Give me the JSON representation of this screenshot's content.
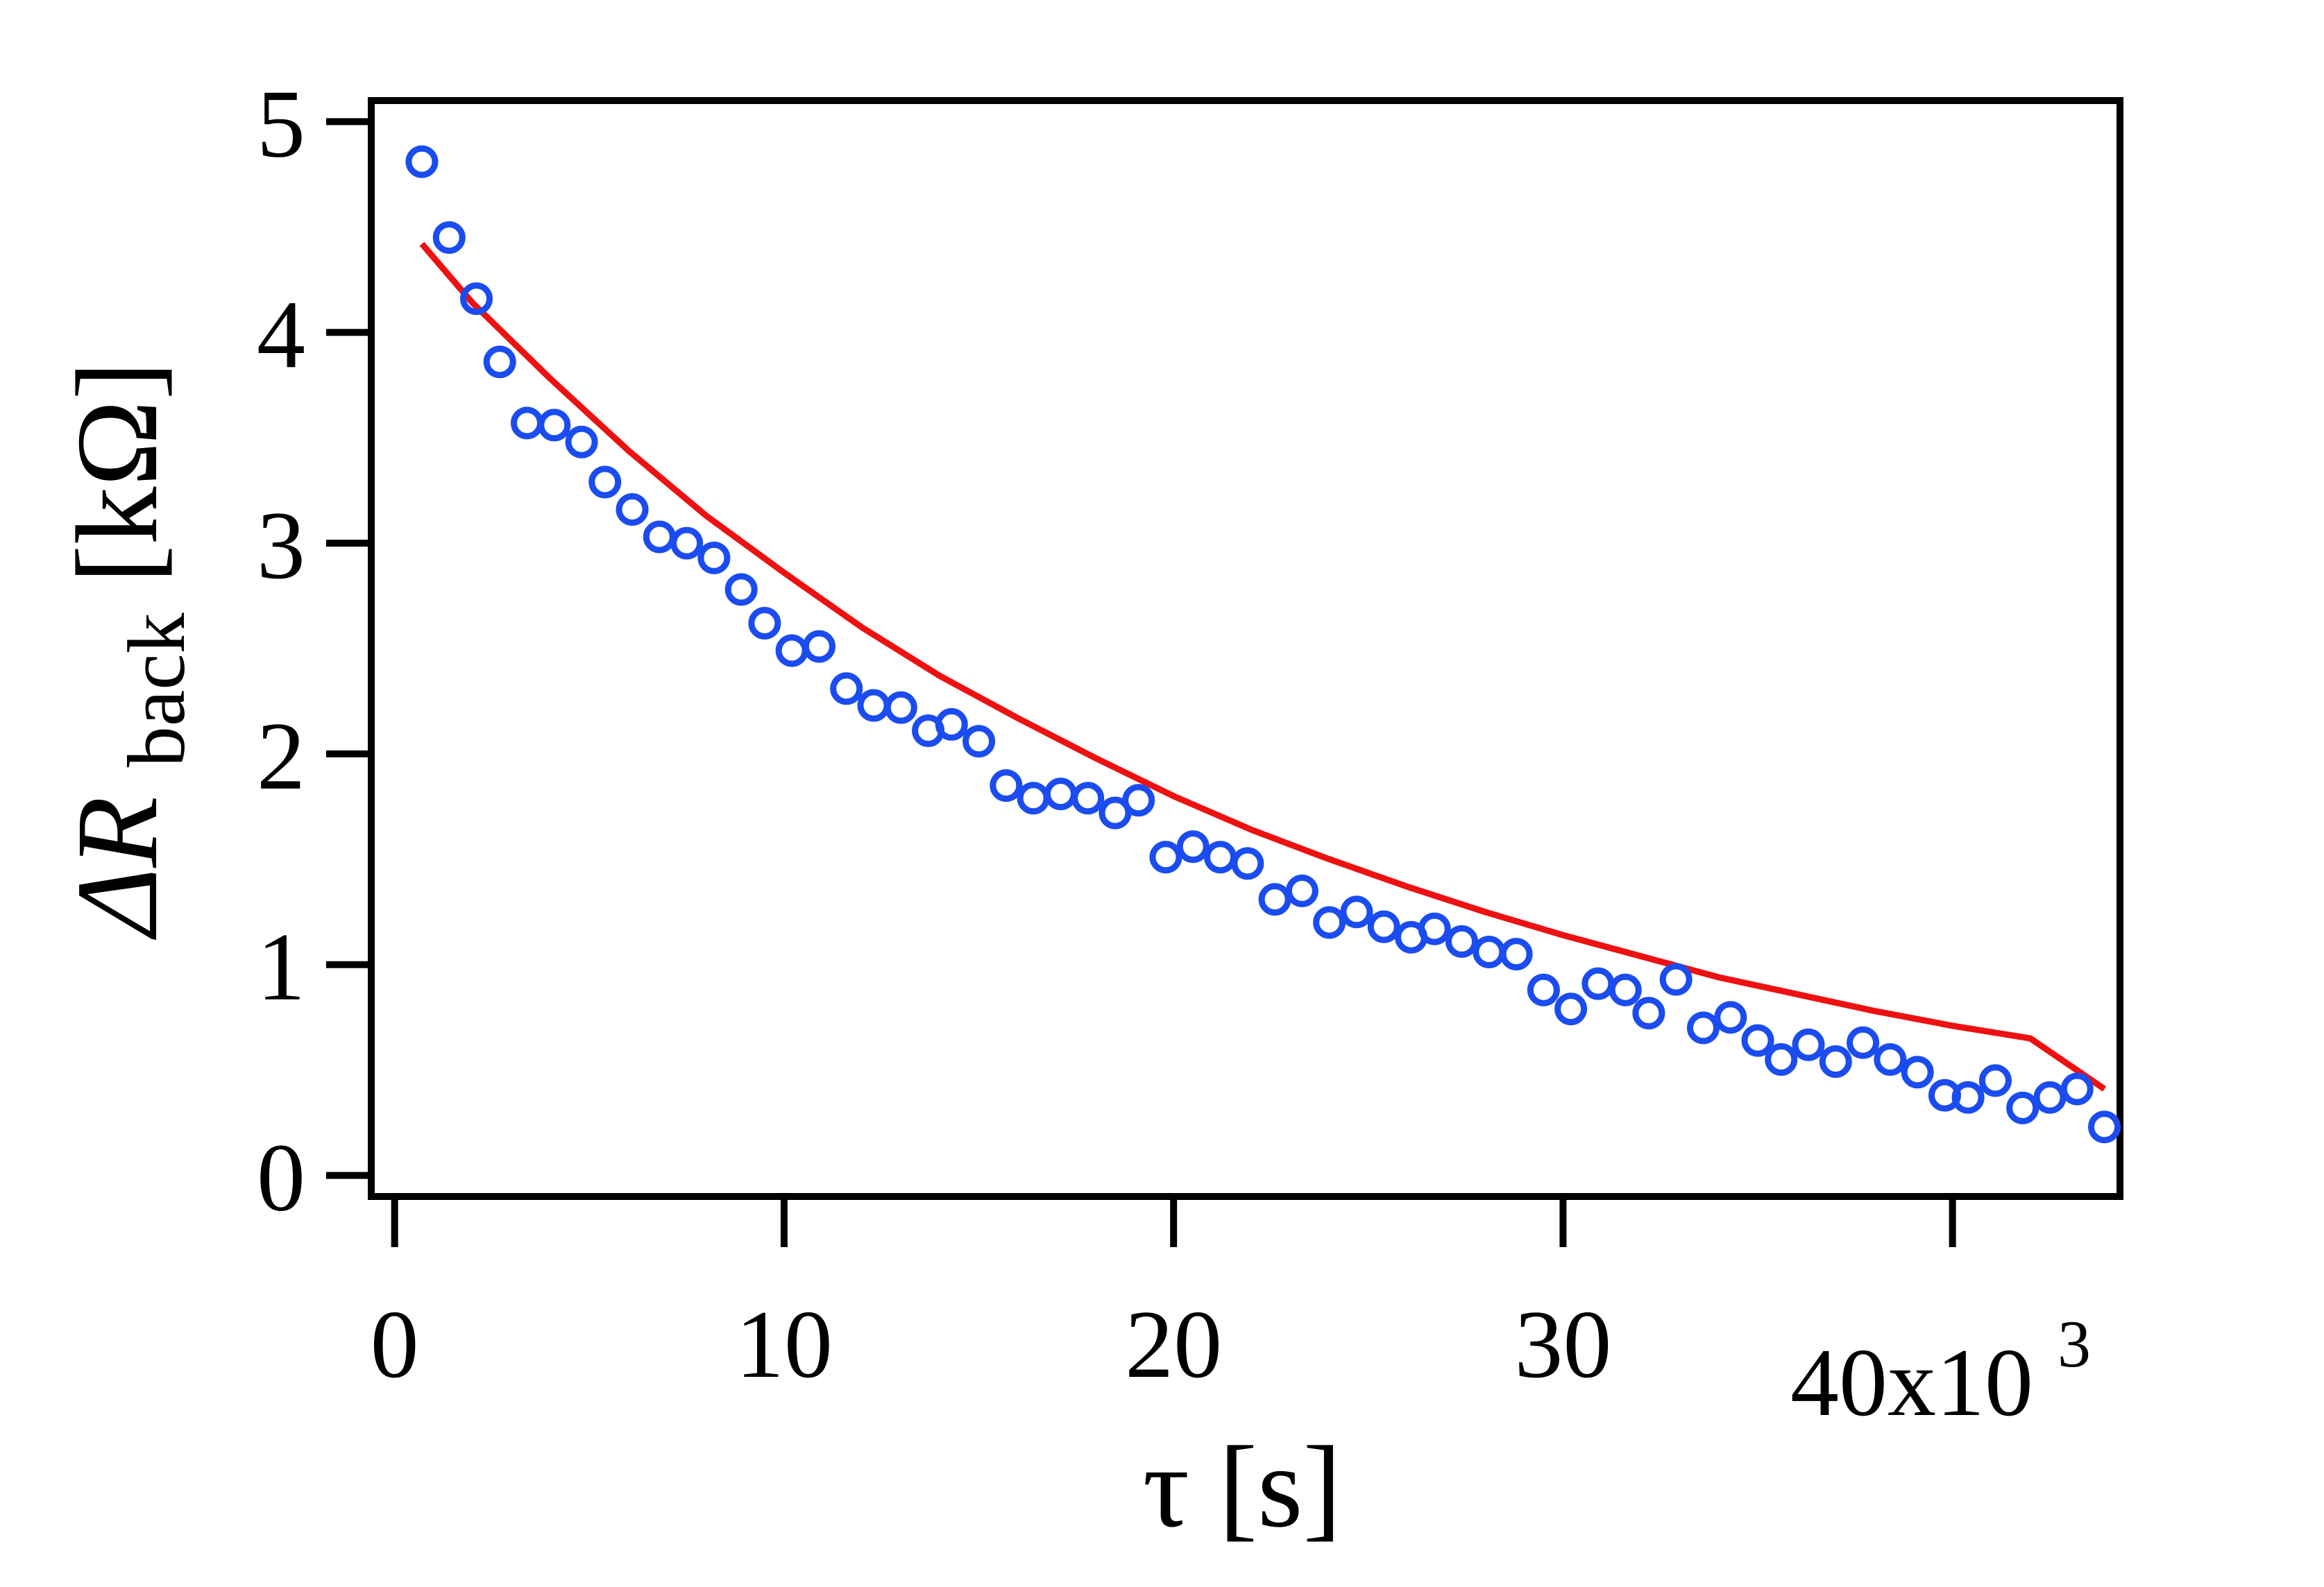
{
  "chart_data": {
    "type": "scatter",
    "title": "",
    "xlabel": "τ [s]",
    "ylabel": {
      "prefix": "ΔR",
      "subscript": "back",
      "unit": " [kΩ]"
    },
    "x_multiplier_label": {
      "base": "40x10",
      "exponent": "3"
    },
    "xlim": [
      -600,
      44300
    ],
    "ylim": [
      -0.1,
      5.1
    ],
    "x_ticks": [
      0,
      10000,
      20000,
      30000,
      40000
    ],
    "x_tick_labels": [
      "0",
      "10",
      "20",
      "30",
      ""
    ],
    "y_ticks": [
      0,
      1,
      2,
      3,
      4,
      5
    ],
    "y_tick_labels": [
      "0",
      "1",
      "2",
      "3",
      "4",
      "5"
    ],
    "grid": false,
    "legend": "none",
    "colors": {
      "points": "#1a4cf0",
      "fit": "#ee1111",
      "axes": "#000000"
    },
    "series": [
      {
        "kind": "points",
        "x": [
          700,
          1400,
          2100,
          2700,
          3400,
          4100,
          4800,
          5400,
          6100,
          6800,
          7500,
          8200,
          8900,
          9500,
          10200,
          10900,
          11600,
          12300,
          13000,
          13700,
          14300,
          15000,
          15700,
          16400,
          17100,
          17800,
          18500,
          19100,
          19800,
          20500,
          21200,
          21900,
          22600,
          23300,
          24000,
          24700,
          25400,
          26100,
          26700,
          27400,
          28100,
          28800,
          29500,
          30200,
          30900,
          31600,
          32200,
          32900,
          33600,
          34300,
          35000,
          35600,
          36300,
          37000,
          37700,
          38400,
          39100,
          39800,
          40400,
          41100,
          41800,
          42500,
          43200,
          43900
        ],
        "y": [
          4.81,
          4.45,
          4.16,
          3.86,
          3.57,
          3.56,
          3.48,
          3.29,
          3.16,
          3.03,
          3.0,
          2.93,
          2.78,
          2.62,
          2.49,
          2.51,
          2.31,
          2.23,
          2.22,
          2.11,
          2.14,
          2.06,
          1.85,
          1.79,
          1.81,
          1.79,
          1.72,
          1.78,
          1.51,
          1.56,
          1.51,
          1.48,
          1.31,
          1.35,
          1.2,
          1.25,
          1.18,
          1.13,
          1.17,
          1.11,
          1.06,
          1.05,
          0.88,
          0.79,
          0.91,
          0.88,
          0.77,
          0.93,
          0.7,
          0.75,
          0.64,
          0.55,
          0.62,
          0.54,
          0.63,
          0.55,
          0.49,
          0.38,
          0.37,
          0.45,
          0.32,
          0.37,
          0.41,
          0.23
        ]
      },
      {
        "kind": "fit",
        "x": [
          700,
          2000,
          4000,
          6000,
          8000,
          10000,
          12000,
          14000,
          16000,
          18000,
          20000,
          22000,
          24000,
          26000,
          28000,
          30000,
          32000,
          34000,
          36000,
          38000,
          40000,
          42000,
          43900
        ],
        "y": [
          4.42,
          4.14,
          3.78,
          3.44,
          3.13,
          2.86,
          2.6,
          2.37,
          2.17,
          1.98,
          1.8,
          1.64,
          1.5,
          1.37,
          1.25,
          1.14,
          1.04,
          0.94,
          0.86,
          0.78,
          0.71,
          0.65,
          0.41
        ]
      }
    ]
  }
}
